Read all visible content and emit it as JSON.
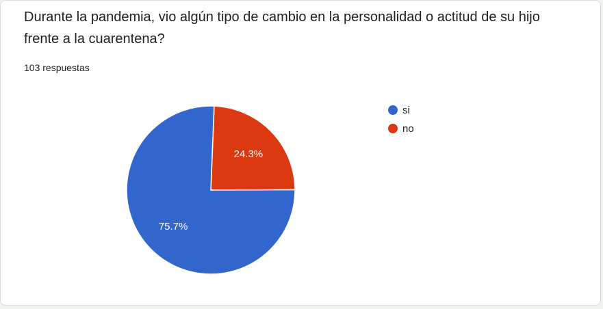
{
  "question": {
    "title": "Durante la pandemia, vio algún tipo de cambio en la personalidad o actitud de su hijo frente a la cuarentena?",
    "response_count": "103 respuestas"
  },
  "chart_data": {
    "type": "pie",
    "categories": [
      "si",
      "no"
    ],
    "values": [
      75.7,
      24.3
    ],
    "value_labels": [
      "75.7%",
      "24.3%"
    ],
    "colors": [
      "#3366cc",
      "#dc3912"
    ],
    "legend_position": "right",
    "start_angle_deg": 90,
    "direction": "clockwise-from-top: 'no' first"
  }
}
